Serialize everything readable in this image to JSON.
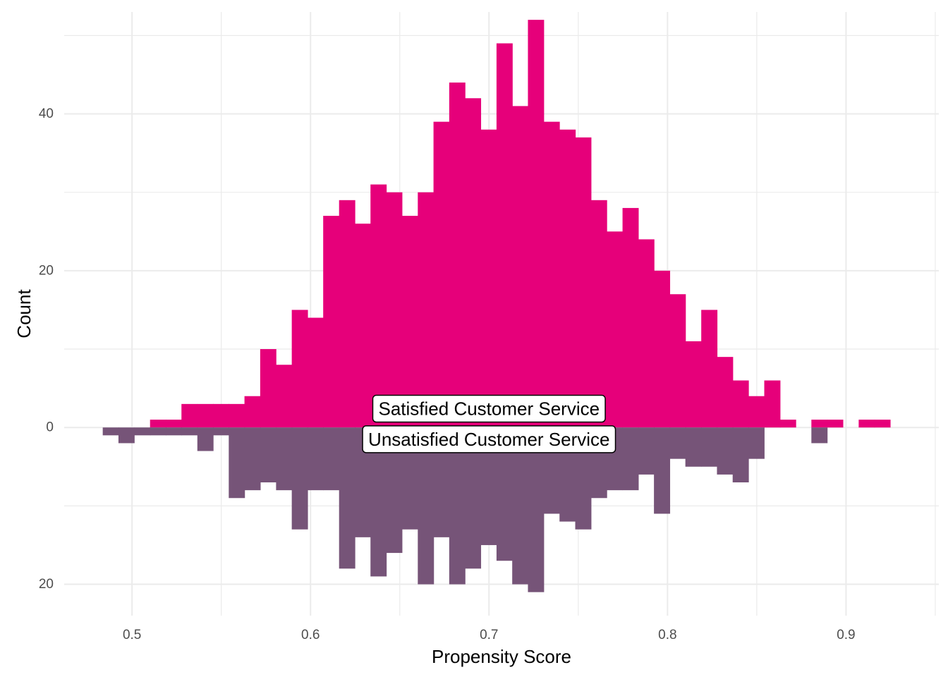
{
  "chart_data": {
    "type": "bar",
    "subtype": "mirrored-histogram",
    "title": "",
    "xlabel": "Propensity Score",
    "ylabel": "Count",
    "xlim": [
      0.462,
      0.952
    ],
    "ylim": [
      -24,
      53
    ],
    "x_ticks": [
      0.5,
      0.6,
      0.7,
      0.8,
      0.9
    ],
    "x_tick_labels": [
      "0.5",
      "0.6",
      "0.7",
      "0.8",
      "0.9"
    ],
    "y_ticks": [
      -20,
      0,
      20,
      40
    ],
    "y_tick_labels": [
      "20",
      "0",
      "20",
      "40"
    ],
    "grid": true,
    "bin_width": 0.00882,
    "colors": {
      "top": "#e6007a",
      "bottom": "#765478",
      "grid": "#ebebeb"
    },
    "series": [
      {
        "name": "Satisfied Customer Service",
        "direction": "up",
        "bin_starts": [
          0.5101,
          0.5189,
          0.5277,
          0.5366,
          0.5454,
          0.5542,
          0.563,
          0.5718,
          0.5807,
          0.5895,
          0.5983,
          0.6071,
          0.616,
          0.6248,
          0.6336,
          0.6424,
          0.6512,
          0.6601,
          0.6689,
          0.6777,
          0.6865,
          0.6954,
          0.7042,
          0.713,
          0.7218,
          0.7306,
          0.7395,
          0.7483,
          0.7571,
          0.7659,
          0.7748,
          0.7836,
          0.7924,
          0.8012,
          0.81,
          0.8189,
          0.8277,
          0.8365,
          0.8453,
          0.8542,
          0.863,
          0.8718,
          0.8806,
          0.8894,
          0.8983,
          0.9071,
          0.9159,
          0.9247
        ],
        "values": [
          1,
          1,
          3,
          3,
          3,
          3,
          4,
          10,
          8,
          15,
          14,
          27,
          29,
          26,
          31,
          30,
          27,
          30,
          39,
          44,
          42,
          38,
          49,
          41,
          52,
          39,
          38,
          37,
          29,
          25,
          28,
          24,
          20,
          17,
          11,
          15,
          9,
          6,
          4,
          6,
          1,
          0,
          1,
          1,
          0,
          1,
          1,
          0
        ]
      },
      {
        "name": "Unsatisfied Customer Service",
        "direction": "down",
        "bin_starts": [
          0.4836,
          0.4924,
          0.5013,
          0.5101,
          0.5189,
          0.5277,
          0.5366,
          0.5454,
          0.5542,
          0.563,
          0.5718,
          0.5807,
          0.5895,
          0.5983,
          0.6071,
          0.616,
          0.6248,
          0.6336,
          0.6424,
          0.6512,
          0.6601,
          0.6689,
          0.6777,
          0.6865,
          0.6954,
          0.7042,
          0.713,
          0.7218,
          0.7306,
          0.7395,
          0.7483,
          0.7571,
          0.7659,
          0.7748,
          0.7836,
          0.7924,
          0.8012,
          0.81,
          0.8189,
          0.8277,
          0.8365,
          0.8453,
          0.8542,
          0.863,
          0.8718,
          0.8806
        ],
        "values": [
          1,
          2,
          1,
          1,
          1,
          1,
          3,
          1,
          9,
          8,
          7,
          8,
          13,
          8,
          8,
          18,
          14,
          19,
          16,
          13,
          20,
          14,
          20,
          18,
          15,
          17,
          20,
          21,
          11,
          12,
          13,
          9,
          8,
          8,
          6,
          11,
          4,
          5,
          5,
          6,
          7,
          4,
          0,
          0,
          0,
          2
        ]
      }
    ]
  }
}
